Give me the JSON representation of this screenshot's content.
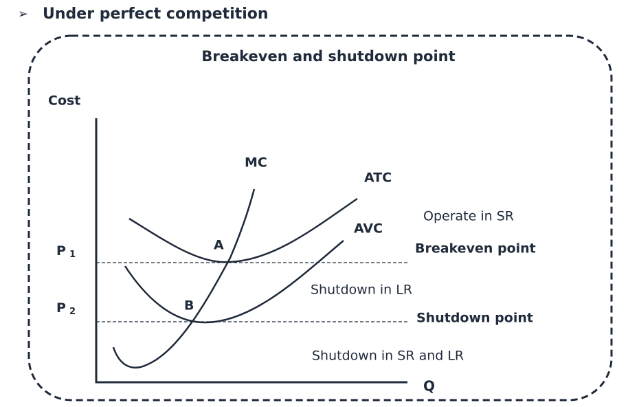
{
  "header": {
    "bullet": "➢",
    "title": "Under perfect competition"
  },
  "diagram": {
    "title": "Breakeven and shutdown point",
    "y_axis_label": "Cost",
    "x_axis_label": "Q",
    "curves": [
      "MC",
      "ATC",
      "AVC"
    ],
    "points": [
      "A",
      "B"
    ],
    "prices": [
      {
        "letter": "P",
        "subscript": "1"
      },
      {
        "letter": "P",
        "subscript": "2"
      }
    ],
    "regions": [
      "Operate in SR",
      "Shutdown in LR",
      "Shutdown in SR and LR"
    ],
    "levels": [
      "Breakeven point",
      "Shutdown point"
    ]
  }
}
